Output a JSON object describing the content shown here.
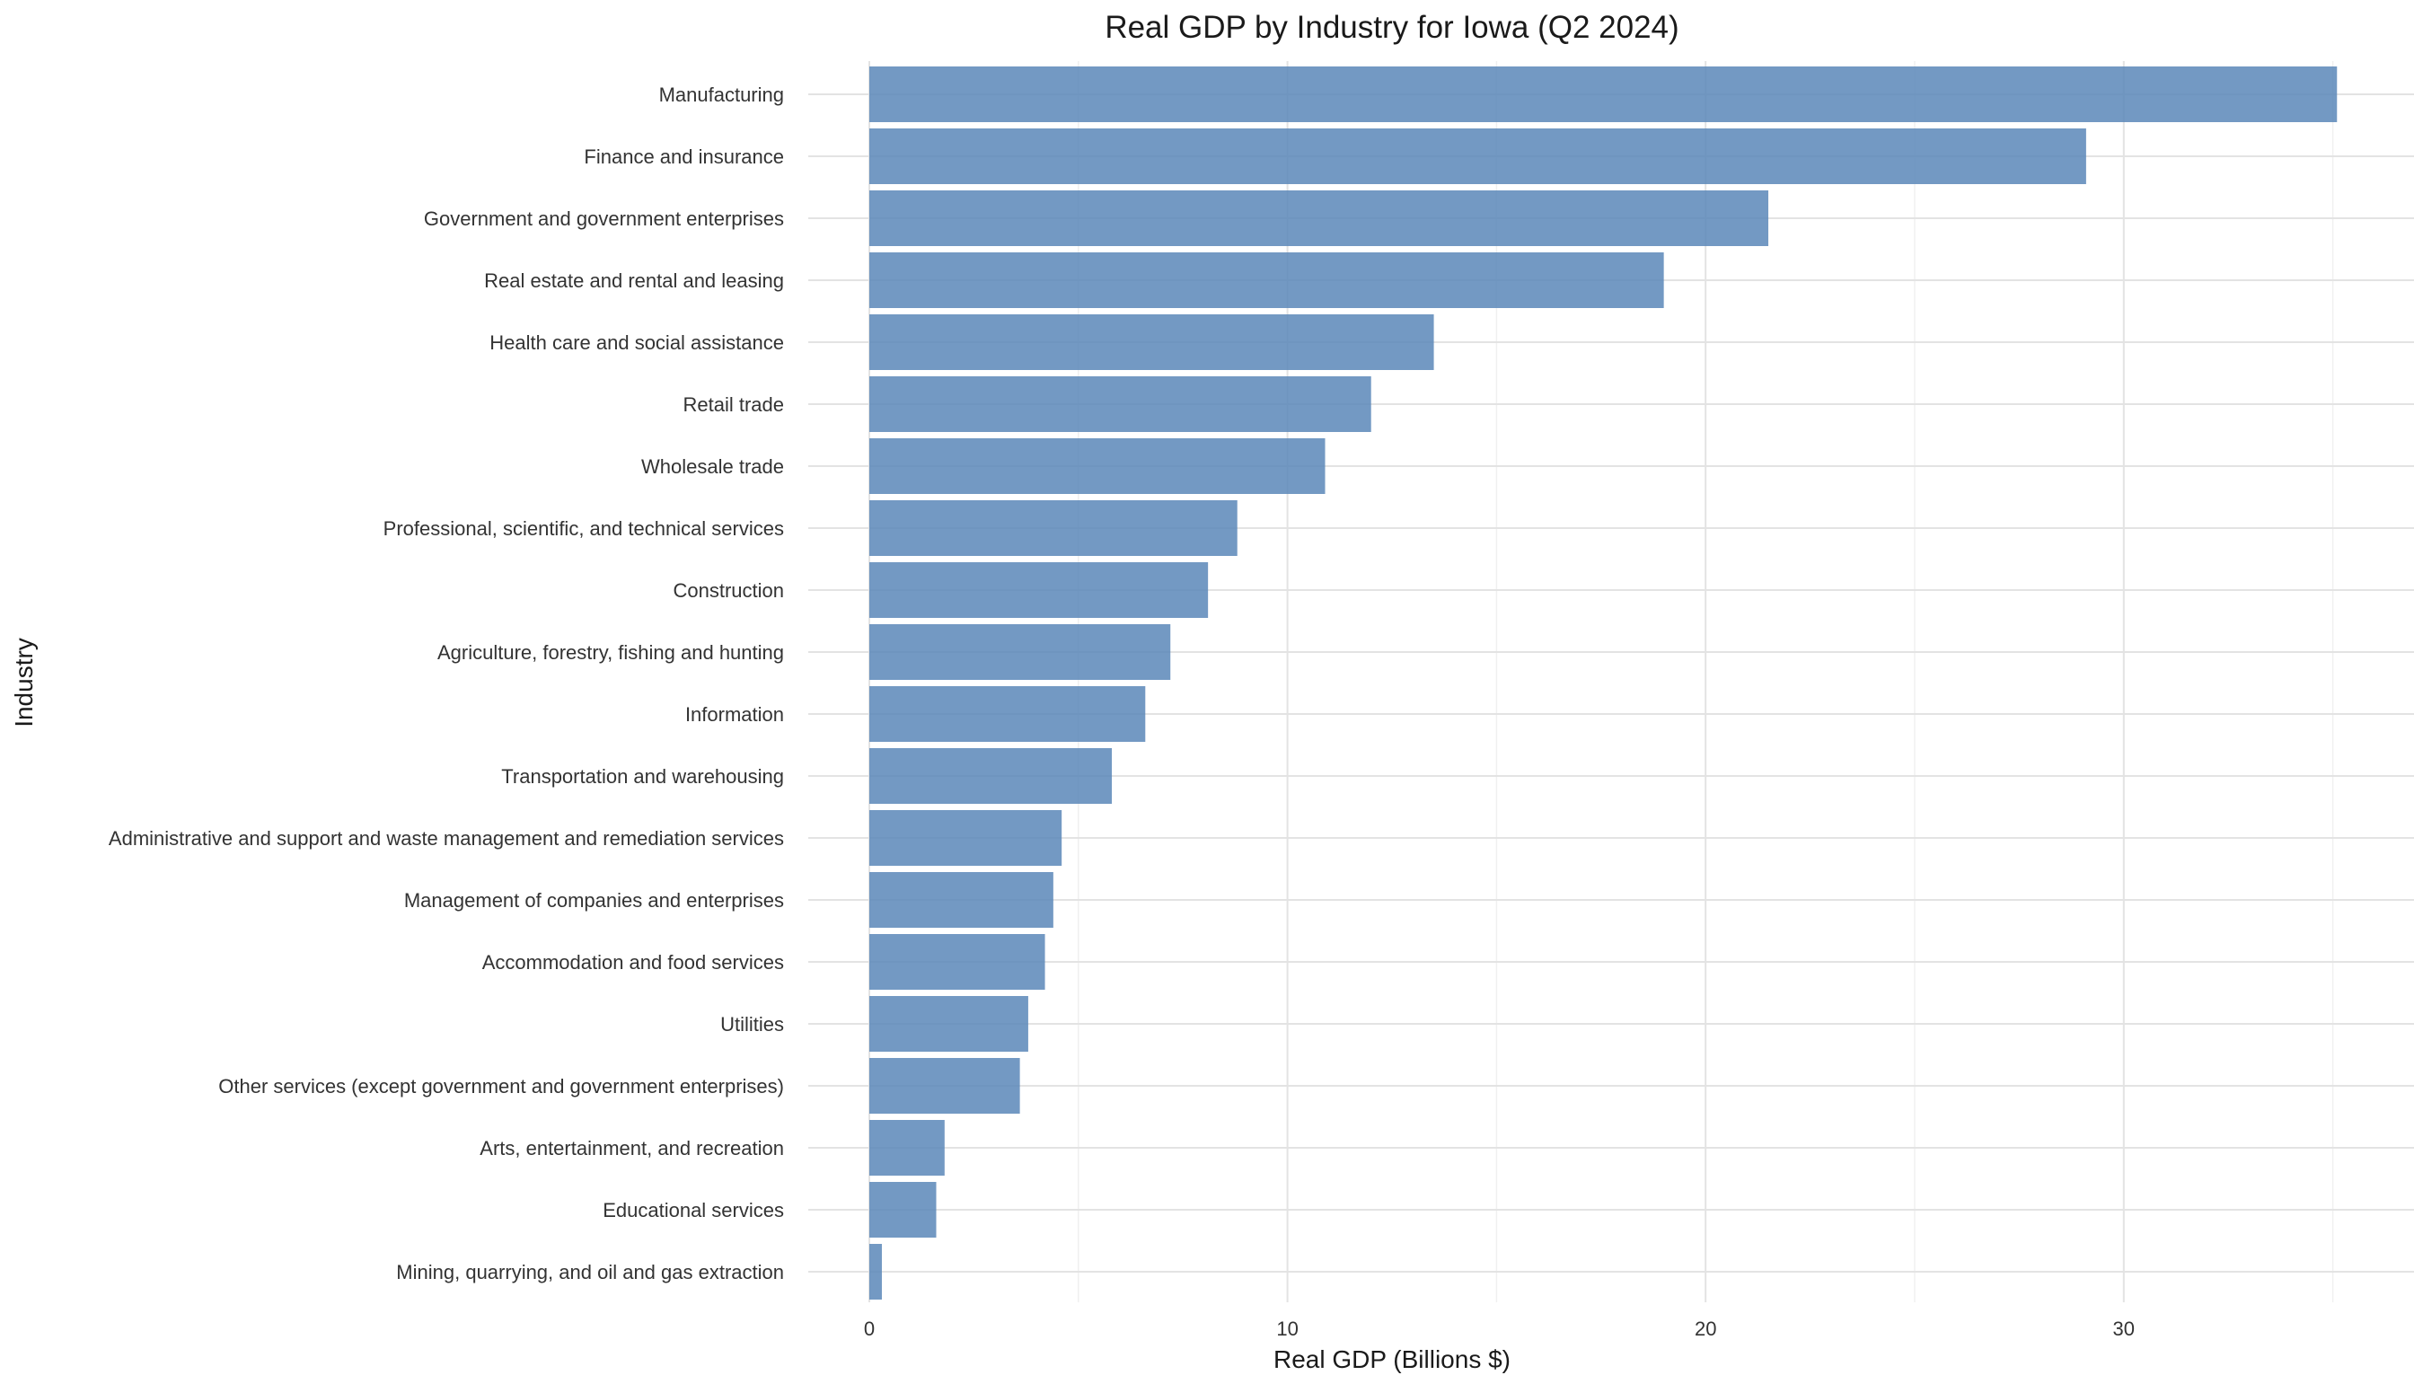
{
  "chart_data": {
    "type": "bar",
    "orientation": "horizontal",
    "title": "Real GDP by Industry for Iowa (Q2 2024)",
    "xlabel": "Real GDP (Billions $)",
    "ylabel": "Industry",
    "xlim": [
      0,
      36
    ],
    "xticks": [
      0,
      10,
      20,
      30
    ],
    "grid": true,
    "legend": "none",
    "bar_color": "#5b87b8",
    "categories": [
      "Manufacturing",
      "Finance and insurance",
      "Government and government enterprises",
      "Real estate and rental and leasing",
      "Health care and social assistance",
      "Retail trade",
      "Wholesale trade",
      "Professional, scientific, and technical services",
      "Construction",
      "Agriculture, forestry, fishing and hunting",
      "Information",
      "Transportation and warehousing",
      "Administrative and support and waste management and remediation services",
      "Management of companies and enterprises",
      "Accommodation and food services",
      "Utilities",
      "Other services (except government and government enterprises)",
      "Arts, entertainment, and recreation",
      "Educational services",
      "Mining, quarrying, and oil and gas extraction"
    ],
    "values": [
      35.1,
      29.1,
      21.5,
      19.0,
      13.5,
      12.0,
      10.9,
      8.8,
      8.1,
      7.2,
      6.6,
      5.8,
      4.6,
      4.4,
      4.2,
      3.8,
      3.6,
      1.8,
      1.6,
      0.3
    ]
  }
}
